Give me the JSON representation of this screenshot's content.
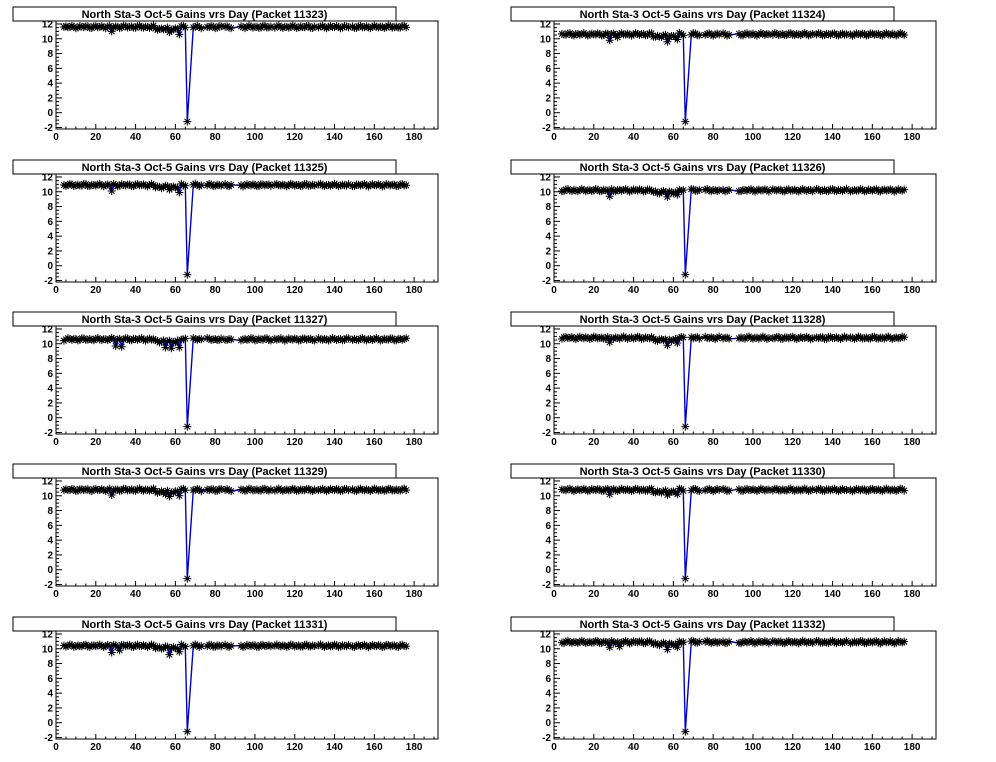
{
  "colors": {
    "marker": "#000000",
    "line": "#0000cc",
    "frame": "#000000",
    "background": "#ffffff"
  },
  "chart_data": [
    {
      "type": "scatter",
      "title": "North Sta-3 Oct-5 Gains vrs Day (Packet 11323)",
      "xlim": [
        0,
        192
      ],
      "ylim": [
        -2.2,
        12.4
      ],
      "xticks": [
        0,
        20,
        40,
        60,
        80,
        100,
        120,
        140,
        160,
        180
      ],
      "yticks": [
        -2,
        0,
        2,
        4,
        6,
        8,
        10,
        12
      ],
      "base": 11.6,
      "dip_day": 66,
      "dip_value": -1.2,
      "low_days": [
        [
          28,
          11.0
        ],
        [
          57,
          10.9
        ],
        [
          62,
          10.6
        ]
      ]
    },
    {
      "type": "scatter",
      "title": "North Sta-3 Oct-5 Gains vrs Day (Packet 11324)",
      "xlim": [
        0,
        192
      ],
      "ylim": [
        -2.2,
        12.4
      ],
      "xticks": [
        0,
        20,
        40,
        60,
        80,
        100,
        120,
        140,
        160,
        180
      ],
      "yticks": [
        -2,
        0,
        2,
        4,
        6,
        8,
        10,
        12
      ],
      "base": 10.6,
      "dip_day": 66,
      "dip_value": -1.2,
      "low_days": [
        [
          28,
          9.8
        ],
        [
          32,
          10.2
        ],
        [
          57,
          9.6
        ],
        [
          62,
          9.9
        ]
      ]
    },
    {
      "type": "scatter",
      "title": "North Sta-3 Oct-5 Gains vrs Day (Packet 11325)",
      "xlim": [
        0,
        192
      ],
      "ylim": [
        -2.2,
        12.4
      ],
      "xticks": [
        0,
        20,
        40,
        60,
        80,
        100,
        120,
        140,
        160,
        180
      ],
      "yticks": [
        -2,
        0,
        2,
        4,
        6,
        8,
        10,
        12
      ],
      "base": 10.9,
      "dip_day": 66,
      "dip_value": -1.2,
      "low_days": [
        [
          28,
          10.1
        ],
        [
          57,
          10.3
        ],
        [
          62,
          9.9
        ]
      ]
    },
    {
      "type": "scatter",
      "title": "North Sta-3 Oct-5 Gains vrs Day (Packet 11326)",
      "xlim": [
        0,
        192
      ],
      "ylim": [
        -2.2,
        12.4
      ],
      "xticks": [
        0,
        20,
        40,
        60,
        80,
        100,
        120,
        140,
        160,
        180
      ],
      "yticks": [
        -2,
        0,
        2,
        4,
        6,
        8,
        10,
        12
      ],
      "base": 10.2,
      "dip_day": 66,
      "dip_value": -1.2,
      "low_days": [
        [
          28,
          9.4
        ],
        [
          57,
          9.3
        ],
        [
          62,
          9.6
        ]
      ]
    },
    {
      "type": "scatter",
      "title": "North Sta-3 Oct-5 Gains vrs Day (Packet 11327)",
      "xlim": [
        0,
        192
      ],
      "ylim": [
        -2.2,
        12.4
      ],
      "xticks": [
        0,
        20,
        40,
        60,
        80,
        100,
        120,
        140,
        160,
        180
      ],
      "yticks": [
        -2,
        0,
        2,
        4,
        6,
        8,
        10,
        12
      ],
      "base": 10.6,
      "dip_day": 66,
      "dip_value": -1.2,
      "low_days": [
        [
          30,
          9.7
        ],
        [
          33,
          9.6
        ],
        [
          55,
          9.5
        ],
        [
          58,
          9.4
        ],
        [
          62,
          9.5
        ]
      ]
    },
    {
      "type": "scatter",
      "title": "North Sta-3 Oct-5 Gains vrs Day (Packet 11328)",
      "xlim": [
        0,
        192
      ],
      "ylim": [
        -2.2,
        12.4
      ],
      "xticks": [
        0,
        20,
        40,
        60,
        80,
        100,
        120,
        140,
        160,
        180
      ],
      "yticks": [
        -2,
        0,
        2,
        4,
        6,
        8,
        10,
        12
      ],
      "base": 10.8,
      "dip_day": 66,
      "dip_value": -1.2,
      "low_days": [
        [
          28,
          10.2
        ],
        [
          57,
          9.8
        ],
        [
          62,
          10.1
        ]
      ]
    },
    {
      "type": "scatter",
      "title": "North Sta-3 Oct-5 Gains vrs Day (Packet 11329)",
      "xlim": [
        0,
        192
      ],
      "ylim": [
        -2.2,
        12.4
      ],
      "xticks": [
        0,
        20,
        40,
        60,
        80,
        100,
        120,
        140,
        160,
        180
      ],
      "yticks": [
        -2,
        0,
        2,
        4,
        6,
        8,
        10,
        12
      ],
      "base": 10.8,
      "dip_day": 66,
      "dip_value": -1.2,
      "low_days": [
        [
          28,
          10.1
        ],
        [
          55,
          10.2
        ],
        [
          57,
          9.9
        ],
        [
          62,
          10.0
        ]
      ]
    },
    {
      "type": "scatter",
      "title": "North Sta-3 Oct-5 Gains vrs Day (Packet 11330)",
      "xlim": [
        0,
        192
      ],
      "ylim": [
        -2.2,
        12.4
      ],
      "xticks": [
        0,
        20,
        40,
        60,
        80,
        100,
        120,
        140,
        160,
        180
      ],
      "yticks": [
        -2,
        0,
        2,
        4,
        6,
        8,
        10,
        12
      ],
      "base": 10.8,
      "dip_day": 66,
      "dip_value": -1.2,
      "low_days": [
        [
          28,
          10.2
        ],
        [
          57,
          10.1
        ],
        [
          62,
          10.2
        ]
      ]
    },
    {
      "type": "scatter",
      "title": "North Sta-3 Oct-5 Gains vrs Day (Packet 11331)",
      "xlim": [
        0,
        192
      ],
      "ylim": [
        -2.2,
        12.4
      ],
      "xticks": [
        0,
        20,
        40,
        60,
        80,
        100,
        120,
        140,
        160,
        180
      ],
      "yticks": [
        -2,
        0,
        2,
        4,
        6,
        8,
        10,
        12
      ],
      "base": 10.4,
      "dip_day": 66,
      "dip_value": -1.2,
      "low_days": [
        [
          28,
          9.5
        ],
        [
          32,
          9.8
        ],
        [
          57,
          9.2
        ],
        [
          62,
          9.6
        ]
      ]
    },
    {
      "type": "scatter",
      "title": "North Sta-3 Oct-5 Gains vrs Day (Packet 11332)",
      "xlim": [
        0,
        192
      ],
      "ylim": [
        -2.2,
        12.4
      ],
      "xticks": [
        0,
        20,
        40,
        60,
        80,
        100,
        120,
        140,
        160,
        180
      ],
      "yticks": [
        -2,
        0,
        2,
        4,
        6,
        8,
        10,
        12
      ],
      "base": 10.9,
      "dip_day": 66,
      "dip_value": -1.2,
      "low_days": [
        [
          28,
          10.2
        ],
        [
          33,
          10.3
        ],
        [
          57,
          9.9
        ],
        [
          62,
          10.2
        ]
      ]
    }
  ]
}
